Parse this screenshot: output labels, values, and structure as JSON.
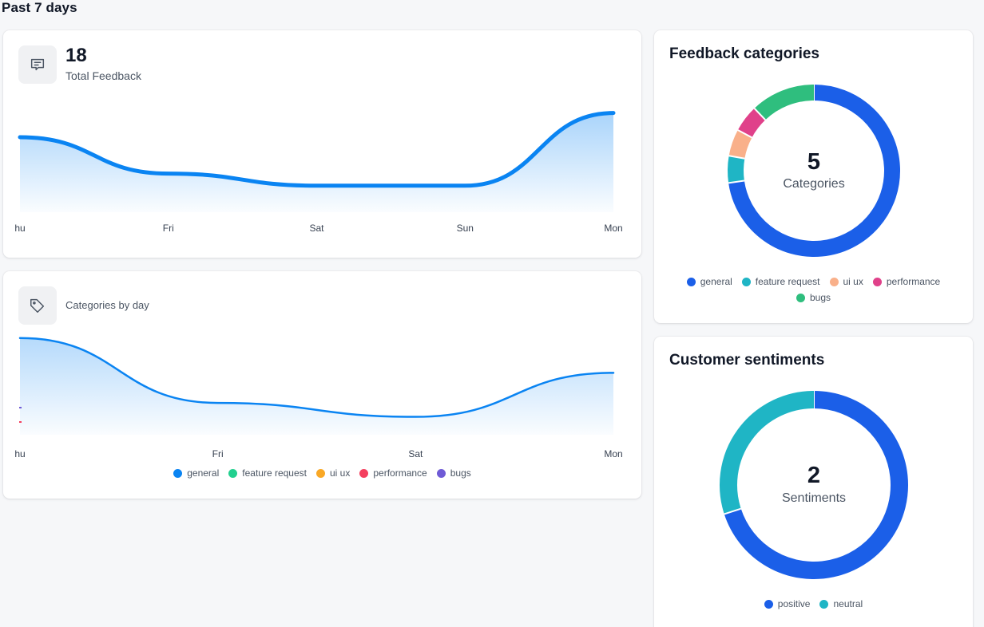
{
  "header": {
    "title": "Past 7 days"
  },
  "total_feedback": {
    "value": "18",
    "label": "Total Feedback",
    "icon": "message-square-icon",
    "color": "#0a84f2",
    "chart_data": {
      "type": "area",
      "title": "Total Feedback",
      "x": [
        "Thu",
        "Fri",
        "Sat",
        "Sun",
        "Mon"
      ],
      "x_tick_labels": [
        "hu",
        "Fri",
        "Sat",
        "Sun",
        "Mon"
      ],
      "series": [
        {
          "name": "feedback",
          "values": [
            5,
            2,
            1,
            1,
            7
          ]
        }
      ],
      "ylim": [
        0,
        7.5
      ],
      "xlabel": "",
      "ylabel": ""
    }
  },
  "categories_by_day": {
    "label": "Categories by day",
    "icon": "tag-icon",
    "chart_data": {
      "type": "area",
      "title": "Categories by day",
      "x": [
        "Thu",
        "Fri",
        "Sat",
        "Mon"
      ],
      "x_tick_labels": [
        "hu",
        "Fri",
        "Sat",
        "Mon"
      ],
      "series": [
        {
          "name": "general",
          "color": "#0a84f2",
          "values": [
            4,
            1.2,
            0.6,
            2.5
          ]
        },
        {
          "name": "feature request",
          "color": "#22d08f",
          "values": [
            0,
            0,
            0,
            0
          ]
        },
        {
          "name": "ui ux",
          "color": "#f9a826",
          "values": [
            0,
            0,
            0,
            0
          ]
        },
        {
          "name": "performance",
          "color": "#f43f5e",
          "values": [
            0,
            0,
            0,
            0
          ]
        },
        {
          "name": "bugs",
          "color": "#6f5bd6",
          "values": [
            0,
            0,
            0,
            0
          ]
        }
      ],
      "ylim": [
        0,
        4.3
      ],
      "xlabel": "",
      "ylabel": ""
    }
  },
  "feedback_categories": {
    "title": "Feedback categories",
    "center_value": "5",
    "center_label": "Categories",
    "chart_data": {
      "type": "pie",
      "title": "Feedback categories",
      "labels": [
        "general",
        "feature request",
        "ui ux",
        "performance",
        "bugs"
      ],
      "values": [
        72,
        5,
        5,
        5,
        12
      ],
      "colors": [
        "#1b5fe8",
        "#1fb5c5",
        "#f9b08a",
        "#e0418a",
        "#2fbe7e"
      ]
    }
  },
  "customer_sentiments": {
    "title": "Customer sentiments",
    "center_value": "2",
    "center_label": "Sentiments",
    "chart_data": {
      "type": "pie",
      "title": "Customer sentiments",
      "labels": [
        "positive",
        "neutral"
      ],
      "values": [
        70,
        30
      ],
      "colors": [
        "#1b5fe8",
        "#1fb5c5"
      ]
    }
  }
}
